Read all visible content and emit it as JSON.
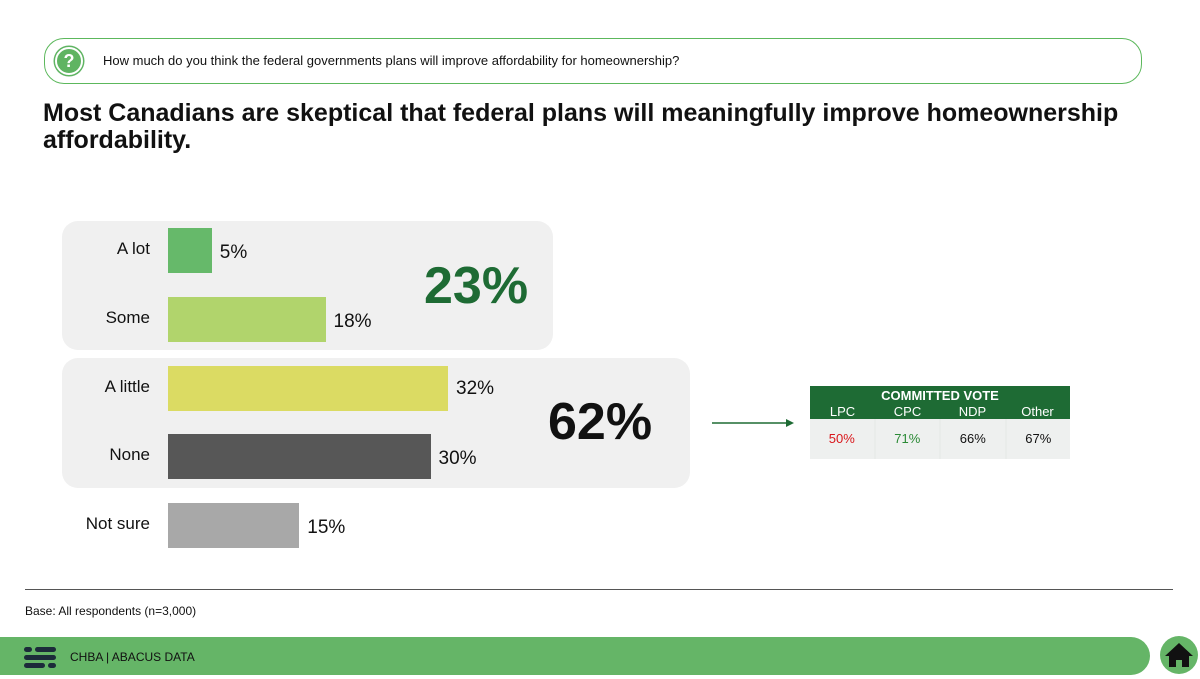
{
  "question": {
    "icon": "question-circle-icon",
    "text": "How much do you think the federal governments plans will improve affordability for homeownership?"
  },
  "headline": "Most Canadians are skeptical that federal plans will meaningfully improve homeownership affordability.",
  "chart_data": {
    "type": "bar",
    "orientation": "horizontal",
    "categories": [
      "A lot",
      "Some",
      "A little",
      "None",
      "Not sure"
    ],
    "values": [
      5,
      18,
      32,
      30,
      15
    ],
    "value_labels": [
      "5%",
      "18%",
      "32%",
      "30%",
      "15%"
    ],
    "colors": [
      "#66b96a",
      "#b1d46c",
      "#dbdb63",
      "#575757",
      "#a8a8a8"
    ],
    "xlim": [
      0,
      50
    ],
    "groups": [
      {
        "label": "23%",
        "members": [
          "A lot",
          "Some"
        ],
        "color": "#1e6b34"
      },
      {
        "label": "62%",
        "members": [
          "A little",
          "None"
        ],
        "color": "#111111"
      }
    ],
    "title": "",
    "xlabel": "",
    "ylabel": ""
  },
  "committed_vote": {
    "title": "COMMITTED VOTE",
    "columns": [
      "LPC",
      "CPC",
      "NDP",
      "Other"
    ],
    "values": [
      "50%",
      "71%",
      "66%",
      "67%"
    ],
    "value_colors": [
      "#d9161b",
      "#2a8a35",
      "#111111",
      "#111111"
    ],
    "header_color": "#1e6b34"
  },
  "base_note": "Base: All respondents (n=3,000)",
  "footer": {
    "text": "CHBA  |  ABACUS DATA",
    "logo_icon": "abacus-logo-icon",
    "home_icon": "home-icon"
  }
}
